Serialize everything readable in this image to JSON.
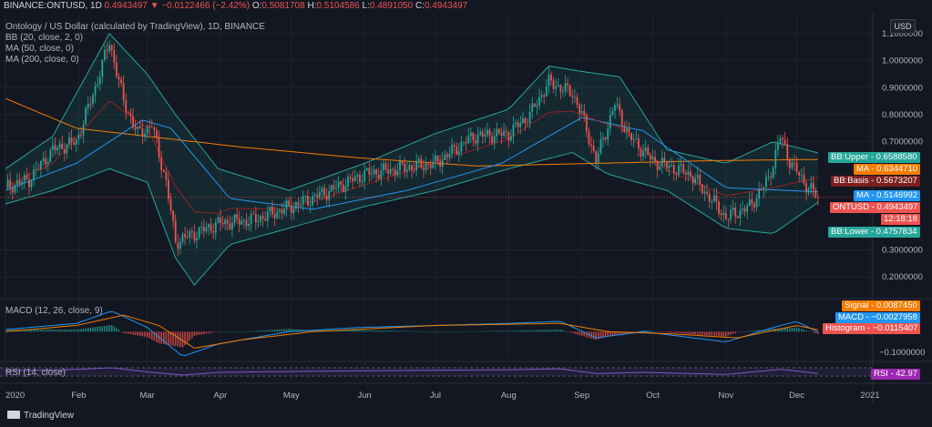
{
  "header": {
    "symbol": "BINANCE:ONTUSD, 1D",
    "last": "0.4943497",
    "change": "▼ −0.0122466 (−2.42%)",
    "o_label": "O:",
    "o": "0.5081708",
    "h_label": "H:",
    "h": "0.5104586",
    "l_label": "L:",
    "l": "0.4891050",
    "c_label": "C:",
    "c": "0.4943497"
  },
  "legend": {
    "title": "Ontology / US Dollar (calculated by TradingView), 1D, BINANCE",
    "bb": "BB (20, close, 2, 0)",
    "ma50": "MA (50, close, 0)",
    "ma200": "MA (200, close, 0)"
  },
  "currency_button": "USD",
  "macd_legend": "MACD (12, 26, close, 9)",
  "rsi_legend": "RSI (14, close)",
  "price_tags": [
    {
      "label": "BB:Upper",
      "value": "0.6588580",
      "color": "#26a69a",
      "y": 0.658858
    },
    {
      "label": "MA",
      "value": "0.6344710",
      "color": "#f57c00",
      "y": 0.634471
    },
    {
      "label": "BB:Basis",
      "value": "0.5673207",
      "color": "#7b1f1f",
      "y": 0.5673207
    },
    {
      "label": "MA",
      "value": "0.5146992",
      "color": "#2196f3",
      "y": 0.5146992
    },
    {
      "label": "ONTUSD",
      "value": "0.4943497",
      "color": "#ef5350",
      "y": 0.4943497
    },
    {
      "label": "",
      "value": "12:18:18",
      "color": "#ef5350",
      "y": 0.445
    },
    {
      "label": "BB:Lower",
      "value": "0.4757834",
      "color": "#26a69a",
      "y": 0.4
    }
  ],
  "macd_tags": [
    {
      "label": "Signal",
      "value": "0.0087450",
      "color": "#f57c00"
    },
    {
      "label": "MACD",
      "value": "−0.0027958",
      "color": "#2196f3"
    },
    {
      "label": "Histogram",
      "value": "−0.0115407",
      "color": "#ef5350"
    }
  ],
  "rsi_tag": {
    "label": "RSI",
    "value": "42.97",
    "color": "#9c27b0"
  },
  "macd_axis_label": "−0.1000000",
  "brand": "TradingView",
  "colors": {
    "up": "#26a69a",
    "down": "#ef5350",
    "bb": "#26a69a",
    "ma50": "#2196f3",
    "ma200": "#f57c00",
    "basis": "#b71c1c",
    "rsi": "#7e57c2"
  },
  "chart_data": {
    "type": "candlestick",
    "y_axis_ticks": [
      "1.1000000",
      "1.0000000",
      "0.9000000",
      "0.8000000",
      "0.7000000",
      "0.3000000",
      "0.2000000"
    ],
    "ylim": [
      0.15,
      1.15
    ],
    "x_ticks": [
      "2020",
      "Feb",
      "Mar",
      "Apr",
      "May",
      "Jun",
      "Jul",
      "Aug",
      "Sep",
      "Oct",
      "Nov",
      "Dec",
      "2021"
    ],
    "x_tick_days": [
      0,
      31,
      60,
      91,
      121,
      152,
      182,
      213,
      244,
      274,
      305,
      335,
      366
    ],
    "close_anchors": [
      [
        0,
        0.53
      ],
      [
        10,
        0.56
      ],
      [
        20,
        0.67
      ],
      [
        30,
        0.7
      ],
      [
        38,
        0.9
      ],
      [
        44,
        1.07
      ],
      [
        50,
        0.85
      ],
      [
        56,
        0.73
      ],
      [
        62,
        0.76
      ],
      [
        68,
        0.55
      ],
      [
        72,
        0.33
      ],
      [
        80,
        0.36
      ],
      [
        91,
        0.4
      ],
      [
        105,
        0.41
      ],
      [
        121,
        0.46
      ],
      [
        135,
        0.51
      ],
      [
        152,
        0.58
      ],
      [
        166,
        0.6
      ],
      [
        182,
        0.62
      ],
      [
        198,
        0.72
      ],
      [
        213,
        0.73
      ],
      [
        222,
        0.8
      ],
      [
        230,
        0.92
      ],
      [
        240,
        0.88
      ],
      [
        244,
        0.8
      ],
      [
        250,
        0.63
      ],
      [
        258,
        0.84
      ],
      [
        264,
        0.72
      ],
      [
        274,
        0.63
      ],
      [
        290,
        0.58
      ],
      [
        305,
        0.42
      ],
      [
        315,
        0.46
      ],
      [
        323,
        0.56
      ],
      [
        328,
        0.72
      ],
      [
        332,
        0.63
      ],
      [
        338,
        0.55
      ],
      [
        344,
        0.4943497
      ]
    ],
    "ma200_anchors": [
      [
        0,
        0.86
      ],
      [
        30,
        0.75
      ],
      [
        60,
        0.72
      ],
      [
        100,
        0.68
      ],
      [
        150,
        0.64
      ],
      [
        200,
        0.61
      ],
      [
        250,
        0.62
      ],
      [
        300,
        0.63
      ],
      [
        344,
        0.634471
      ]
    ],
    "ma50_anchors": [
      [
        0,
        0.52
      ],
      [
        30,
        0.62
      ],
      [
        58,
        0.78
      ],
      [
        70,
        0.75
      ],
      [
        95,
        0.49
      ],
      [
        130,
        0.45
      ],
      [
        170,
        0.52
      ],
      [
        210,
        0.62
      ],
      [
        244,
        0.79
      ],
      [
        270,
        0.74
      ],
      [
        305,
        0.53
      ],
      [
        344,
        0.5146992
      ]
    ],
    "bb_upper_anchors": [
      [
        0,
        0.6
      ],
      [
        20,
        0.72
      ],
      [
        44,
        1.1
      ],
      [
        60,
        0.95
      ],
      [
        72,
        0.8
      ],
      [
        90,
        0.6
      ],
      [
        120,
        0.52
      ],
      [
        152,
        0.62
      ],
      [
        182,
        0.73
      ],
      [
        213,
        0.82
      ],
      [
        230,
        0.98
      ],
      [
        244,
        0.96
      ],
      [
        260,
        0.94
      ],
      [
        280,
        0.67
      ],
      [
        305,
        0.62
      ],
      [
        325,
        0.7
      ],
      [
        344,
        0.658858
      ]
    ],
    "bb_lower_anchors": [
      [
        0,
        0.47
      ],
      [
        20,
        0.52
      ],
      [
        44,
        0.6
      ],
      [
        60,
        0.55
      ],
      [
        72,
        0.27
      ],
      [
        80,
        0.17
      ],
      [
        95,
        0.32
      ],
      [
        120,
        0.38
      ],
      [
        152,
        0.46
      ],
      [
        182,
        0.52
      ],
      [
        213,
        0.6
      ],
      [
        240,
        0.66
      ],
      [
        255,
        0.58
      ],
      [
        280,
        0.52
      ],
      [
        305,
        0.38
      ],
      [
        325,
        0.36
      ],
      [
        344,
        0.4757834
      ]
    ],
    "macd_anchors": [
      [
        0,
        0.01
      ],
      [
        30,
        0.04
      ],
      [
        45,
        0.1
      ],
      [
        60,
        0.02
      ],
      [
        75,
        -0.12
      ],
      [
        90,
        -0.06
      ],
      [
        120,
        0.0
      ],
      [
        150,
        0.02
      ],
      [
        182,
        0.03
      ],
      [
        213,
        0.04
      ],
      [
        235,
        0.05
      ],
      [
        250,
        -0.03
      ],
      [
        270,
        0.0
      ],
      [
        305,
        -0.05
      ],
      [
        325,
        0.02
      ],
      [
        335,
        0.05
      ],
      [
        344,
        -0.0027958
      ]
    ],
    "signal_anchors": [
      [
        0,
        0.0
      ],
      [
        30,
        0.03
      ],
      [
        50,
        0.08
      ],
      [
        65,
        0.03
      ],
      [
        80,
        -0.08
      ],
      [
        100,
        -0.04
      ],
      [
        130,
        0.0
      ],
      [
        182,
        0.03
      ],
      [
        235,
        0.04
      ],
      [
        255,
        0.0
      ],
      [
        280,
        -0.01
      ],
      [
        310,
        -0.03
      ],
      [
        335,
        0.03
      ],
      [
        344,
        0.008745
      ]
    ],
    "macd_ylim": [
      -0.14,
      0.16
    ],
    "rsi_anchors": [
      [
        0,
        55
      ],
      [
        30,
        62
      ],
      [
        45,
        70
      ],
      [
        60,
        50
      ],
      [
        75,
        35
      ],
      [
        90,
        48
      ],
      [
        120,
        52
      ],
      [
        150,
        55
      ],
      [
        182,
        58
      ],
      [
        213,
        60
      ],
      [
        235,
        65
      ],
      [
        250,
        42
      ],
      [
        270,
        48
      ],
      [
        305,
        38
      ],
      [
        328,
        62
      ],
      [
        344,
        42.97
      ]
    ],
    "rsi_ylim": [
      0,
      100
    ],
    "rsi_levels": [
      70,
      30
    ]
  }
}
